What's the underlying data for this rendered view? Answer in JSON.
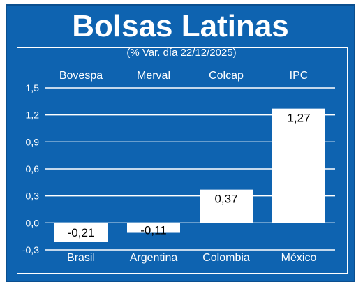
{
  "colors": {
    "background": "#0e63b0",
    "bars": "#ffffff",
    "text_light": "#ffffff",
    "text_dark": "#000000"
  },
  "chart_data": {
    "type": "bar",
    "title": "Bolsas Latinas",
    "subtitle": "(% Var. día 22/12/2025)",
    "index_names": [
      "Bovespa",
      "Merval",
      "Colcap",
      "IPC"
    ],
    "categories": [
      "Brasil",
      "Argentina",
      "Colombia",
      "México"
    ],
    "values": [
      -0.21,
      -0.11,
      0.37,
      1.27
    ],
    "value_labels": [
      "-0,21",
      "-0,11",
      "0,37",
      "1,27"
    ],
    "ylim": [
      -0.3,
      1.5
    ],
    "yticks": [
      1.5,
      1.2,
      0.9,
      0.6,
      0.3,
      0.0,
      -0.3
    ],
    "ytick_labels": [
      "1,5",
      "1,2",
      "0,9",
      "0,6",
      "0,3",
      "0,0",
      "-0,3"
    ],
    "grid": true,
    "legend": "none"
  }
}
